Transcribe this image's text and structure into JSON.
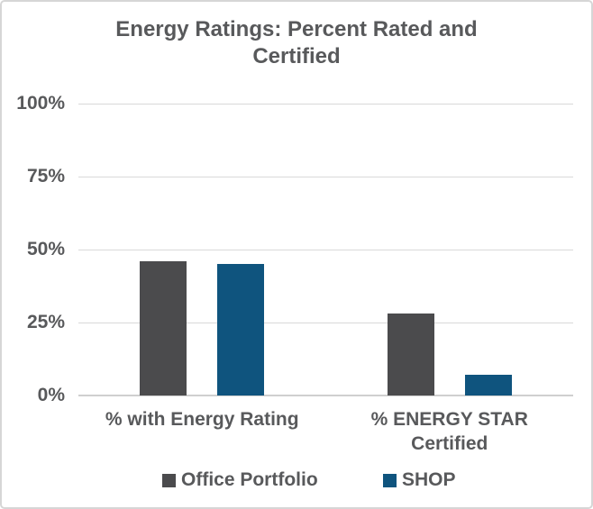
{
  "frame": {
    "background": "#FFFFFF",
    "border_color": "#D6D6D6"
  },
  "chart_data": {
    "type": "bar",
    "title": "Energy Ratings: Percent Rated and Certified",
    "title_lines": [
      "Energy Ratings: Percent Rated and",
      "Certified"
    ],
    "categories": [
      "% with Energy Rating",
      "% ENERGY STAR Certified"
    ],
    "series": [
      {
        "name": "Office Portfolio",
        "color": "#4B4B4D",
        "values": [
          46,
          28
        ]
      },
      {
        "name": "SHOP",
        "color": "#0F547E",
        "values": [
          45,
          7
        ]
      }
    ],
    "yticks": [
      "0%",
      "25%",
      "50%",
      "75%",
      "100%"
    ],
    "ytick_values": [
      0,
      25,
      50,
      75,
      100
    ],
    "ylim": [
      0,
      100
    ],
    "xlabel": "",
    "ylabel": "",
    "grid": "horizontal",
    "legend_position": "bottom",
    "text_color": "#58595B",
    "gridline_color": "#D9D9D9"
  }
}
